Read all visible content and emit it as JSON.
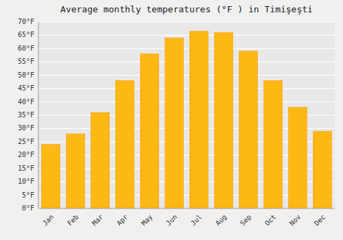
{
  "chart_data": {
    "type": "bar",
    "title": "Average monthly temperatures (°F ) in Timişeşti",
    "categories": [
      "Jan",
      "Feb",
      "Mar",
      "Apr",
      "May",
      "Jun",
      "Jul",
      "Aug",
      "Sep",
      "Oct",
      "Nov",
      "Dec"
    ],
    "values": [
      24,
      28,
      36,
      48,
      58,
      64,
      66.5,
      66,
      59,
      48,
      38,
      29
    ],
    "color": "#FDB813",
    "ylim": [
      0,
      70
    ],
    "yticks": [
      {
        "value": 0,
        "label": "0°F"
      },
      {
        "value": 5,
        "label": "5°F"
      },
      {
        "value": 10,
        "label": "10°F"
      },
      {
        "value": 15,
        "label": "15°F"
      },
      {
        "value": 20,
        "label": "20°F"
      },
      {
        "value": 25,
        "label": "25°F"
      },
      {
        "value": 30,
        "label": "30°F"
      },
      {
        "value": 35,
        "label": "35°F"
      },
      {
        "value": 40,
        "label": "40°F"
      },
      {
        "value": 45,
        "label": "45°F"
      },
      {
        "value": 50,
        "label": "50°F"
      },
      {
        "value": 55,
        "label": "55°F"
      },
      {
        "value": 60,
        "label": "60°F"
      },
      {
        "value": 65,
        "label": "65°F"
      },
      {
        "value": 70,
        "label": "70°F"
      }
    ],
    "grid": true
  }
}
